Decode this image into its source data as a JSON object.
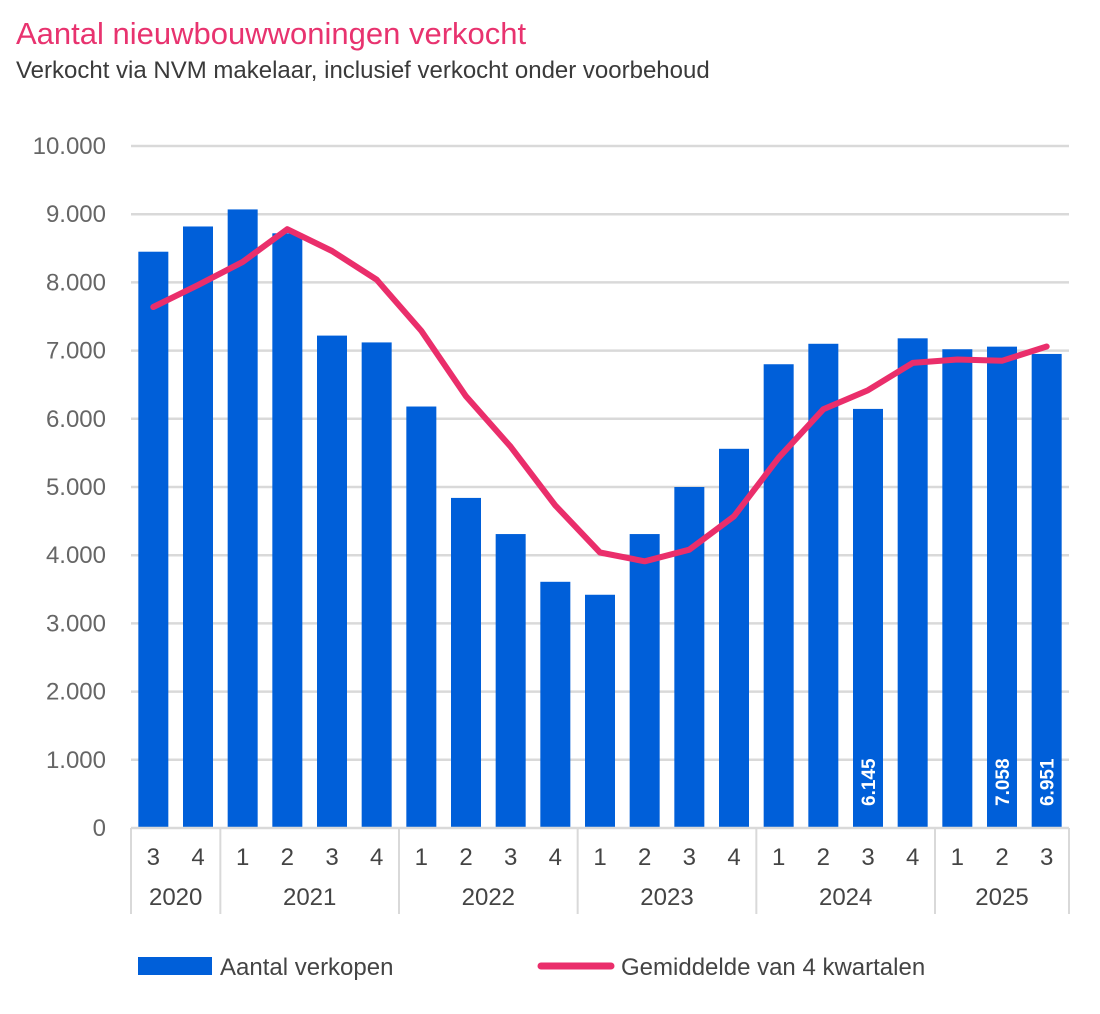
{
  "chart_data": {
    "type": "bar",
    "title": "Aantal nieuwbouwwoningen verkocht",
    "subtitle": "Verkocht via NVM makelaar, inclusief verkocht onder voorbehoud",
    "ylim": [
      0,
      10000
    ],
    "y_ticks": [
      "0",
      "1.000",
      "2.000",
      "3.000",
      "4.000",
      "5.000",
      "6.000",
      "7.000",
      "8.000",
      "9.000",
      "10.000"
    ],
    "quarters": [
      "3",
      "4",
      "1",
      "2",
      "3",
      "4",
      "1",
      "2",
      "3",
      "4",
      "1",
      "2",
      "3",
      "4",
      "1",
      "2",
      "3",
      "4",
      "1",
      "2",
      "3"
    ],
    "years": [
      {
        "label": "2020",
        "span": 2
      },
      {
        "label": "2021",
        "span": 4
      },
      {
        "label": "2022",
        "span": 4
      },
      {
        "label": "2023",
        "span": 4
      },
      {
        "label": "2024",
        "span": 4
      },
      {
        "label": "2025",
        "span": 3
      }
    ],
    "series": [
      {
        "name": "Aantal verkopen",
        "type": "bar",
        "color": "#005fd9",
        "values": [
          8450,
          8820,
          9070,
          8720,
          7220,
          7120,
          6180,
          4840,
          4310,
          3610,
          3420,
          4310,
          5000,
          5560,
          6800,
          7100,
          6145,
          7180,
          7020,
          7058,
          6951
        ]
      },
      {
        "name": "Gemiddelde van 4 kwartalen",
        "type": "line",
        "color": "#ea2e6b",
        "values": [
          7640,
          7960,
          8300,
          8780,
          8460,
          8040,
          7290,
          6330,
          5590,
          4730,
          4040,
          3910,
          4080,
          4570,
          5430,
          6140,
          6420,
          6820,
          6870,
          6850,
          7060
        ]
      }
    ],
    "data_labels": [
      {
        "index": 16,
        "text": "6.145"
      },
      {
        "index": 19,
        "text": "7.058"
      },
      {
        "index": 20,
        "text": "6.951"
      }
    ]
  }
}
